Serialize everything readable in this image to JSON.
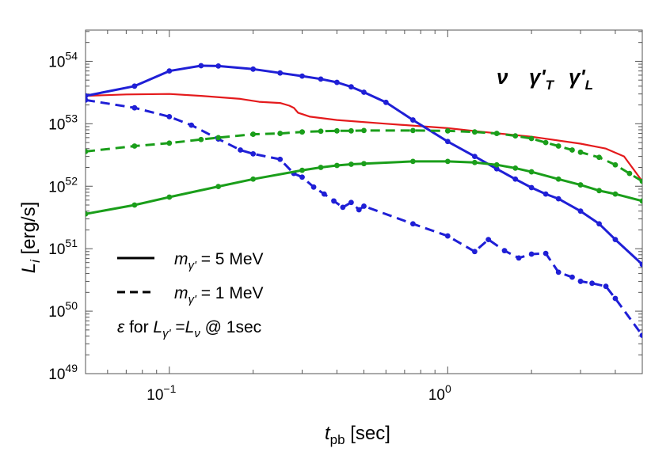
{
  "chart_data": {
    "type": "line",
    "xlabel_main": "t",
    "xlabel_sub": "pb",
    "xlabel_unit": " [sec]",
    "ylabel_main": "L",
    "ylabel_sub": "i",
    "ylabel_unit": " [erg/s]",
    "xscale": "log",
    "yscale": "log",
    "xlim": [
      0.05,
      5.0
    ],
    "ylim": [
      1e+49,
      3.16e+54
    ],
    "grid": false,
    "x_major_ticks": [
      {
        "value": 0.1,
        "base": "10",
        "exp": "−1"
      },
      {
        "value": 1.0,
        "base": "10",
        "exp": "0"
      }
    ],
    "y_major_ticks": [
      {
        "value": 1e+49,
        "base": "10",
        "exp": "49"
      },
      {
        "value": 1e+50,
        "base": "10",
        "exp": "50"
      },
      {
        "value": 1e+51,
        "base": "10",
        "exp": "51"
      },
      {
        "value": 1e+52,
        "base": "10",
        "exp": "52"
      },
      {
        "value": 1e+53,
        "base": "10",
        "exp": "53"
      },
      {
        "value": 1e+54,
        "base": "10",
        "exp": "54"
      }
    ],
    "top_legend": [
      {
        "label": "ν",
        "color": "#e41a1c"
      },
      {
        "label": "γ'",
        "sub": "T",
        "color": "#1f1fd6"
      },
      {
        "label": "γ'",
        "sub": "L",
        "color": "#1a9e1a"
      }
    ],
    "style_legend": [
      {
        "dash": false,
        "text_pre": "m",
        "text_sub": "γ'",
        "text_post": " = 5 MeV"
      },
      {
        "dash": true,
        "text_pre": "m",
        "text_sub": "γ'",
        "text_post": " = 1 MeV"
      }
    ],
    "annotation": {
      "eps": "ε",
      "for": " for ",
      "L": "L",
      "sub1": "γ'",
      "eq": " =",
      "L2": "L",
      "sub2": "ν",
      "tail": " @ 1sec"
    },
    "colors": {
      "nu": "#e41a1c",
      "transverse": "#1f1fd6",
      "longitudinal": "#1a9e1a"
    },
    "series": [
      {
        "key": "nu",
        "color": "#e41a1c",
        "dashed": false,
        "markers": false,
        "x": [
          0.05,
          0.07,
          0.1,
          0.13,
          0.18,
          0.21,
          0.25,
          0.27,
          0.28,
          0.29,
          0.32,
          0.4,
          0.6,
          1.0,
          1.3,
          2.0,
          3.0,
          3.7,
          4.3,
          5.0
        ],
        "y": [
          2.8e+53,
          2.95e+53,
          3e+53,
          2.8e+53,
          2.5e+53,
          2.25e+53,
          2.15e+53,
          1.95e+53,
          1.8e+53,
          1.5e+53,
          1.3e+53,
          1.15e+53,
          1e+53,
          8.5e+52,
          7.5e+52,
          6.2e+52,
          4.8e+52,
          4e+52,
          3e+52,
          1.2e+52
        ]
      },
      {
        "key": "transverse",
        "color": "#1f1fd6",
        "dashed": false,
        "markers": true,
        "x": [
          0.05,
          0.075,
          0.1,
          0.13,
          0.15,
          0.2,
          0.25,
          0.3,
          0.35,
          0.4,
          0.45,
          0.5,
          0.6,
          0.75,
          1.0,
          1.25,
          1.5,
          1.75,
          2.0,
          2.25,
          2.5,
          3.0,
          3.5,
          4.0,
          5.0
        ],
        "y": [
          2.8e+53,
          4e+53,
          7e+53,
          8.5e+53,
          8.4e+53,
          7.5e+53,
          6.5e+53,
          5.8e+53,
          5.2e+53,
          4.6e+53,
          3.9e+53,
          3.2e+53,
          2.2e+53,
          1.15e+53,
          5.2e+52,
          3e+52,
          1.9e+52,
          1.3e+52,
          9.5e+51,
          7.5e+51,
          6.3e+51,
          4e+51,
          2.5e+51,
          1.4e+51,
          5.6e+50
        ]
      },
      {
        "key": "transverse_1MeV",
        "color": "#1f1fd6",
        "dashed": true,
        "markers": true,
        "x": [
          0.05,
          0.075,
          0.1,
          0.12,
          0.15,
          0.18,
          0.2,
          0.25,
          0.28,
          0.3,
          0.33,
          0.36,
          0.39,
          0.42,
          0.45,
          0.48,
          0.5,
          0.75,
          1.0,
          1.25,
          1.4,
          1.6,
          1.8,
          2.0,
          2.25,
          2.5,
          2.8,
          3.0,
          3.3,
          3.7,
          4.0,
          5.0
        ],
        "y": [
          2.4e+53,
          1.8e+53,
          1.3e+53,
          9.5e+52,
          5.7e+52,
          3.8e+52,
          3.3e+52,
          2.7e+52,
          1.6e+52,
          1.4e+52,
          9.7e+51,
          7.5e+51,
          5.8e+51,
          4.6e+51,
          5.5e+51,
          4.2e+51,
          4.8e+51,
          2.5e+51,
          1.6e+51,
          9e+50,
          1.4e+51,
          9.3e+50,
          7.1e+50,
          8.2e+50,
          8.4e+50,
          4.2e+50,
          3.5e+50,
          3e+50,
          2.8e+50,
          2.5e+50,
          1.6e+50,
          4.1e+49
        ]
      },
      {
        "key": "longitudinal",
        "color": "#1a9e1a",
        "dashed": false,
        "markers": true,
        "x": [
          0.05,
          0.075,
          0.1,
          0.15,
          0.2,
          0.3,
          0.35,
          0.4,
          0.45,
          0.5,
          0.75,
          1.0,
          1.25,
          1.5,
          1.75,
          2.0,
          2.5,
          3.0,
          3.5,
          4.0,
          5.0
        ],
        "y": [
          3.6e+51,
          5e+51,
          6.7e+51,
          9.9e+51,
          1.3e+52,
          1.8e+52,
          2e+52,
          2.15e+52,
          2.25e+52,
          2.3e+52,
          2.5e+52,
          2.5e+52,
          2.4e+52,
          2.2e+52,
          1.95e+52,
          1.7e+52,
          1.3e+52,
          1.05e+52,
          8.5e+51,
          7.5e+51,
          5.8e+51
        ]
      },
      {
        "key": "longitudinal_1MeV",
        "color": "#1a9e1a",
        "dashed": true,
        "markers": true,
        "x": [
          0.05,
          0.075,
          0.1,
          0.13,
          0.15,
          0.2,
          0.25,
          0.3,
          0.35,
          0.4,
          0.45,
          0.5,
          0.75,
          1.0,
          1.25,
          1.5,
          1.75,
          2.0,
          2.25,
          2.5,
          2.8,
          3.0,
          3.5,
          4.0,
          4.5,
          5.0
        ],
        "y": [
          3.6e+52,
          4.4e+52,
          4.9e+52,
          5.6e+52,
          6e+52,
          6.8e+52,
          7e+52,
          7.4e+52,
          7.6e+52,
          7.7e+52,
          7.7e+52,
          7.8e+52,
          7.8e+52,
          7.7e+52,
          7.4e+52,
          7e+52,
          6.4e+52,
          5.8e+52,
          5e+52,
          4.4e+52,
          3.8e+52,
          3.5e+52,
          2.9e+52,
          2.2e+52,
          1.6e+52,
          1.2e+52
        ]
      }
    ]
  }
}
